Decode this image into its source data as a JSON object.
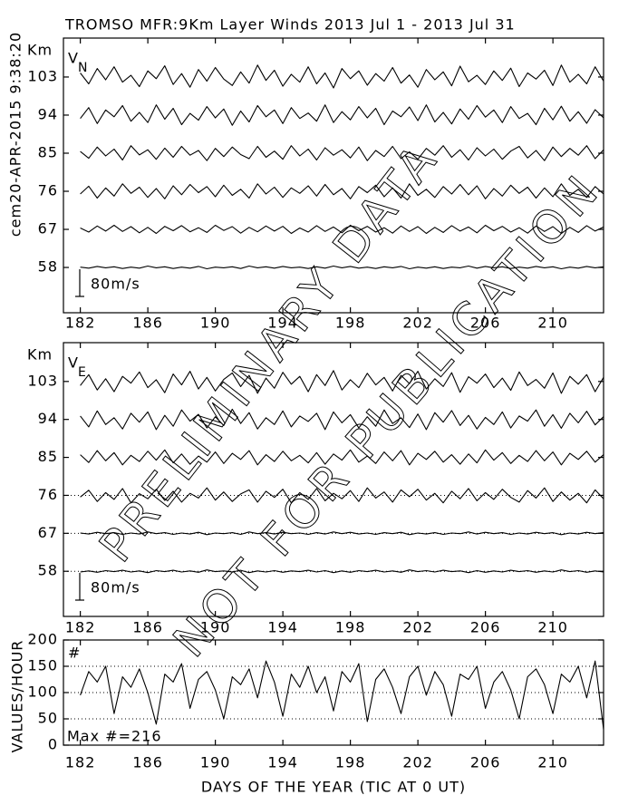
{
  "title": "TROMSO MFR:9Km Layer Winds 2013 Jul  1 - 2013 Jul 31",
  "side_label": "cem20-APR-2015  9:38:20",
  "xlabel": "DAYS OF THE YEAR (TIC AT 0 UT)",
  "watermark": [
    "PRELIMINARY DATA",
    "NOT FOR PUBLICATION"
  ],
  "chart_data": [
    {
      "type": "line",
      "ylabel": "Km",
      "component": "V",
      "component_sub": "N",
      "scale": {
        "value": 80,
        "label": "80m/s"
      },
      "xlim": [
        181,
        213
      ],
      "xticks": [
        182,
        186,
        190,
        194,
        198,
        202,
        206,
        210
      ],
      "ylim": [
        47.3,
        112.2
      ],
      "yticks": [
        58,
        67,
        76,
        85,
        94,
        103
      ],
      "x": [
        182,
        182.5,
        183,
        183.5,
        184,
        184.5,
        185,
        185.5,
        186,
        186.5,
        187,
        187.5,
        188,
        188.5,
        189,
        189.5,
        190,
        190.5,
        191,
        191.5,
        192,
        192.5,
        193,
        193.5,
        194,
        194.5,
        195,
        195.5,
        196,
        196.5,
        197,
        197.5,
        198,
        198.5,
        199,
        199.5,
        200,
        200.5,
        201,
        201.5,
        202,
        202.5,
        203,
        203.5,
        204,
        204.5,
        205,
        205.5,
        206,
        206.5,
        207,
        207.5,
        208,
        208.5,
        209,
        209.5,
        210,
        210.5,
        211,
        211.5,
        212,
        212.5,
        213
      ],
      "series": [
        {
          "color": "#000000",
          "values": [
            1,
            -2,
            3,
            -1,
            2,
            -3,
            1,
            -2,
            4,
            -1,
            2,
            -3,
            1,
            -2,
            3,
            -4,
            1,
            -1,
            2,
            -3,
            4,
            -1,
            2,
            -2,
            3,
            -1,
            1,
            -3,
            2,
            -2,
            4,
            -1,
            3,
            -2,
            1,
            -3,
            2,
            -1,
            3,
            -4,
            1,
            -2,
            2,
            -3,
            1,
            -1,
            4,
            -2,
            3,
            -1,
            2,
            -3,
            1,
            -2,
            3,
            -1,
            2,
            -4,
            1,
            -2,
            3,
            -1,
            2
          ]
        },
        {
          "color": "#000000",
          "values": [
            4,
            -8,
            10,
            -5,
            12,
            -6,
            8,
            -10,
            6,
            -12,
            9,
            -4,
            11,
            -7,
            5,
            -9,
            12,
            -3,
            8,
            -11,
            6,
            -7,
            10,
            -5,
            9,
            -12,
            4,
            -8,
            11,
            -6,
            7,
            -10,
            12,
            -4,
            9,
            -8,
            5,
            -11,
            10,
            -6,
            8,
            -12,
            6,
            -9,
            11,
            -5,
            7,
            -10,
            12,
            -4,
            9,
            -8,
            5,
            -11,
            10,
            -6,
            8,
            -12,
            6,
            -9,
            11,
            -5,
            7
          ]
        },
        {
          "color": "#000000",
          "values": [
            -8,
            15,
            -20,
            10,
            -14,
            22,
            -6,
            12,
            -18,
            8,
            -22,
            16,
            -10,
            20,
            -4,
            14,
            -16,
            18,
            -12,
            6,
            -20,
            22,
            -8,
            12,
            -18,
            10,
            -6,
            16,
            -14,
            20,
            -10,
            8,
            -22,
            14,
            -4,
            18,
            -16,
            10,
            -20,
            22,
            -12,
            6,
            -18,
            14,
            -8,
            20,
            -10,
            16,
            -22,
            8,
            -14,
            18,
            -6,
            12,
            -20,
            10,
            -16,
            22,
            -12,
            6,
            -18,
            14,
            -8
          ]
        },
        {
          "color": "#000000",
          "values": [
            5,
            -15,
            18,
            -8,
            12,
            -20,
            22,
            -5,
            10,
            -18,
            15,
            -12,
            20,
            -6,
            8,
            -22,
            14,
            -10,
            18,
            -4,
            -16,
            20,
            -12,
            6,
            -18,
            22,
            -8,
            12,
            -20,
            16,
            -6,
            10,
            -14,
            18,
            -22,
            8,
            -10,
            20,
            -16,
            4,
            -18,
            14,
            -6,
            22,
            -12,
            10,
            -20,
            16,
            -8,
            12,
            -18,
            6,
            20,
            -14,
            8,
            -22,
            18,
            -10,
            14,
            -6,
            22,
            -16,
            10
          ]
        },
        {
          "color": "#000000",
          "values": [
            -10,
            22,
            -25,
            15,
            -5,
            28,
            -18,
            8,
            -22,
            30,
            -12,
            20,
            -28,
            5,
            -15,
            25,
            -8,
            18,
            -30,
            12,
            -20,
            28,
            -5,
            15,
            -25,
            22,
            -10,
            6,
            -18,
            30,
            -22,
            10,
            -14,
            25,
            -8,
            20,
            -28,
            12,
            -5,
            24,
            -16,
            30,
            -20,
            8,
            -26,
            18,
            -12,
            28,
            -6,
            15,
            -22,
            25,
            -10,
            5,
            -28,
            20,
            -14,
            26,
            -18,
            10,
            -24,
            16,
            -8
          ]
        },
        {
          "color": "#000000",
          "values": [
            12,
            -20,
            25,
            -8,
            30,
            -15,
            5,
            -28,
            18,
            -5,
            33,
            -22,
            10,
            -30,
            22,
            -12,
            28,
            -6,
            -25,
            15,
            -18,
            35,
            -10,
            20,
            -27,
            8,
            -15,
            30,
            -20,
            12,
            -32,
            25,
            -5,
            18,
            -24,
            10,
            -12,
            28,
            -18,
            6,
            -30,
            22,
            -8,
            15,
            -26,
            32,
            -14,
            5,
            -22,
            18,
            -10,
            26,
            -28,
            12,
            -6,
            20,
            -25,
            35,
            -15,
            8,
            -20,
            30,
            -12
          ]
        }
      ]
    },
    {
      "type": "line",
      "ylabel": "Km",
      "component": "V",
      "component_sub": "E",
      "scale": {
        "value": 80,
        "label": "80m/s"
      },
      "reference_lines": [
        76,
        67,
        58
      ],
      "xlim": [
        181,
        213
      ],
      "xticks": [
        182,
        186,
        190,
        194,
        198,
        202,
        206,
        210
      ],
      "ylim": [
        47.3,
        112.2
      ],
      "yticks": [
        58,
        67,
        76,
        85,
        94,
        103
      ],
      "x": [
        182,
        182.5,
        183,
        183.5,
        184,
        184.5,
        185,
        185.5,
        186,
        186.5,
        187,
        187.5,
        188,
        188.5,
        189,
        189.5,
        190,
        190.5,
        191,
        191.5,
        192,
        192.5,
        193,
        193.5,
        194,
        194.5,
        195,
        195.5,
        196,
        196.5,
        197,
        197.5,
        198,
        198.5,
        199,
        199.5,
        200,
        200.5,
        201,
        201.5,
        202,
        202.5,
        203,
        203.5,
        204,
        204.5,
        205,
        205.5,
        206,
        206.5,
        207,
        207.5,
        208,
        208.5,
        209,
        209.5,
        210,
        210.5,
        211,
        211.5,
        212,
        212.5,
        213
      ],
      "series": [
        {
          "color": "#000000",
          "values": [
            -2,
            1,
            -3,
            2,
            -1,
            3,
            -2,
            1,
            -4,
            2,
            -1,
            3,
            -2,
            1,
            -3,
            4,
            -1,
            1,
            -2,
            3,
            -4,
            1,
            -2,
            2,
            -3,
            1,
            -1,
            3,
            -2,
            2,
            -4,
            1,
            -3,
            2,
            -1,
            3,
            -2,
            1,
            -3,
            4,
            -1,
            2,
            -2,
            3,
            -1,
            1,
            -4,
            2,
            -3,
            1,
            -2,
            3,
            -1,
            2,
            -3,
            1,
            -2,
            4,
            -1,
            2,
            -3,
            1,
            -2
          ]
        },
        {
          "color": "#000000",
          "values": [
            1,
            -2,
            3,
            -1,
            2,
            -3,
            1,
            -2,
            4,
            -1,
            2,
            -3,
            1,
            -2,
            3,
            -4,
            1,
            -1,
            2,
            -3,
            4,
            -1,
            2,
            -2,
            3,
            -1,
            1,
            -3,
            2,
            -2,
            4,
            -1,
            3,
            -2,
            1,
            -3,
            2,
            -1,
            3,
            -4,
            1,
            -2,
            2,
            -3,
            1,
            -1,
            4,
            -2,
            3,
            -1,
            2,
            -3,
            1,
            -2,
            3,
            -1,
            2,
            -4,
            1,
            -2,
            3,
            -1,
            2
          ]
        },
        {
          "color": "#000000",
          "values": [
            -5,
            15,
            -18,
            8,
            -12,
            20,
            -22,
            5,
            -10,
            18,
            -15,
            12,
            -20,
            6,
            -8,
            22,
            -14,
            10,
            -18,
            4,
            16,
            -20,
            12,
            -6,
            18,
            -22,
            8,
            -12,
            20,
            -16,
            6,
            -10,
            14,
            -18,
            22,
            -8,
            10,
            -20,
            16,
            -4,
            18,
            -14,
            6,
            -22,
            12,
            -10,
            20,
            -16,
            8,
            -12,
            18,
            -6,
            -20,
            14,
            -8,
            22,
            -18,
            10,
            -14,
            6,
            -22,
            16,
            -10
          ]
        },
        {
          "color": "#000000",
          "values": [
            8,
            -15,
            20,
            -10,
            14,
            -22,
            6,
            -12,
            18,
            -8,
            22,
            -16,
            10,
            -20,
            4,
            -14,
            16,
            -18,
            12,
            -6,
            20,
            -22,
            8,
            -12,
            18,
            -10,
            6,
            -16,
            14,
            -20,
            10,
            -8,
            22,
            -14,
            4,
            -18,
            16,
            -10,
            20,
            -22,
            12,
            -6,
            18,
            -14,
            8,
            -20,
            10,
            -16,
            22,
            -8,
            14,
            -18,
            6,
            -12,
            20,
            -10,
            16,
            -22,
            12,
            -6,
            18,
            -14,
            8
          ]
        },
        {
          "color": "#000000",
          "values": [
            10,
            -22,
            25,
            -15,
            5,
            -28,
            18,
            -8,
            22,
            -30,
            12,
            -20,
            28,
            -5,
            15,
            -25,
            8,
            -18,
            30,
            -12,
            20,
            -28,
            5,
            -15,
            25,
            -22,
            10,
            -6,
            18,
            -30,
            22,
            -10,
            14,
            -25,
            8,
            -20,
            28,
            -12,
            5,
            -24,
            16,
            -30,
            20,
            -8,
            26,
            -18,
            12,
            -28,
            6,
            -15,
            22,
            -25,
            10,
            -5,
            28,
            -20,
            14,
            -26,
            18,
            -10,
            24,
            -16,
            8
          ]
        },
        {
          "color": "#000000",
          "values": [
            -12,
            20,
            -25,
            8,
            -30,
            15,
            -5,
            28,
            -18,
            5,
            -33,
            22,
            -10,
            30,
            -22,
            12,
            -28,
            6,
            25,
            -15,
            18,
            -35,
            10,
            -20,
            27,
            -8,
            15,
            -30,
            20,
            -12,
            32,
            -25,
            5,
            -18,
            24,
            -10,
            12,
            -28,
            18,
            -6,
            30,
            -22,
            8,
            -15,
            26,
            -32,
            14,
            -5,
            22,
            -18,
            10,
            -26,
            28,
            -12,
            6,
            -20,
            25,
            -35,
            15,
            -8,
            20,
            -30,
            12
          ]
        }
      ]
    },
    {
      "type": "line",
      "ylabel": "VALUES/HOUR",
      "marker_label": "#",
      "max_label": "Max #=216",
      "grid": true,
      "xlim": [
        181,
        213
      ],
      "xticks": [
        182,
        186,
        190,
        194,
        198,
        202,
        206,
        210
      ],
      "ylim": [
        0,
        200
      ],
      "yticks": [
        0,
        50,
        100,
        150,
        200
      ],
      "x": [
        182,
        182.5,
        183,
        183.5,
        184,
        184.5,
        185,
        185.5,
        186,
        186.5,
        187,
        187.5,
        188,
        188.5,
        189,
        189.5,
        190,
        190.5,
        191,
        191.5,
        192,
        192.5,
        193,
        193.5,
        194,
        194.5,
        195,
        195.5,
        196,
        196.5,
        197,
        197.5,
        198,
        198.5,
        199,
        199.5,
        200,
        200.5,
        201,
        201.5,
        202,
        202.5,
        203,
        203.5,
        204,
        204.5,
        205,
        205.5,
        206,
        206.5,
        207,
        207.5,
        208,
        208.5,
        209,
        209.5,
        210,
        210.5,
        211,
        211.5,
        212,
        212.5,
        213
      ],
      "series": [
        {
          "color": "#000000",
          "values": [
            95,
            140,
            120,
            150,
            60,
            130,
            110,
            145,
            100,
            40,
            135,
            120,
            155,
            70,
            125,
            140,
            105,
            50,
            130,
            115,
            145,
            90,
            160,
            120,
            55,
            135,
            110,
            150,
            100,
            130,
            65,
            140,
            120,
            155,
            45,
            125,
            145,
            110,
            60,
            130,
            150,
            95,
            140,
            115,
            55,
            135,
            125,
            150,
            70,
            120,
            140,
            105,
            50,
            130,
            145,
            115,
            60,
            135,
            120,
            150,
            90,
            160,
            30
          ]
        }
      ]
    }
  ]
}
